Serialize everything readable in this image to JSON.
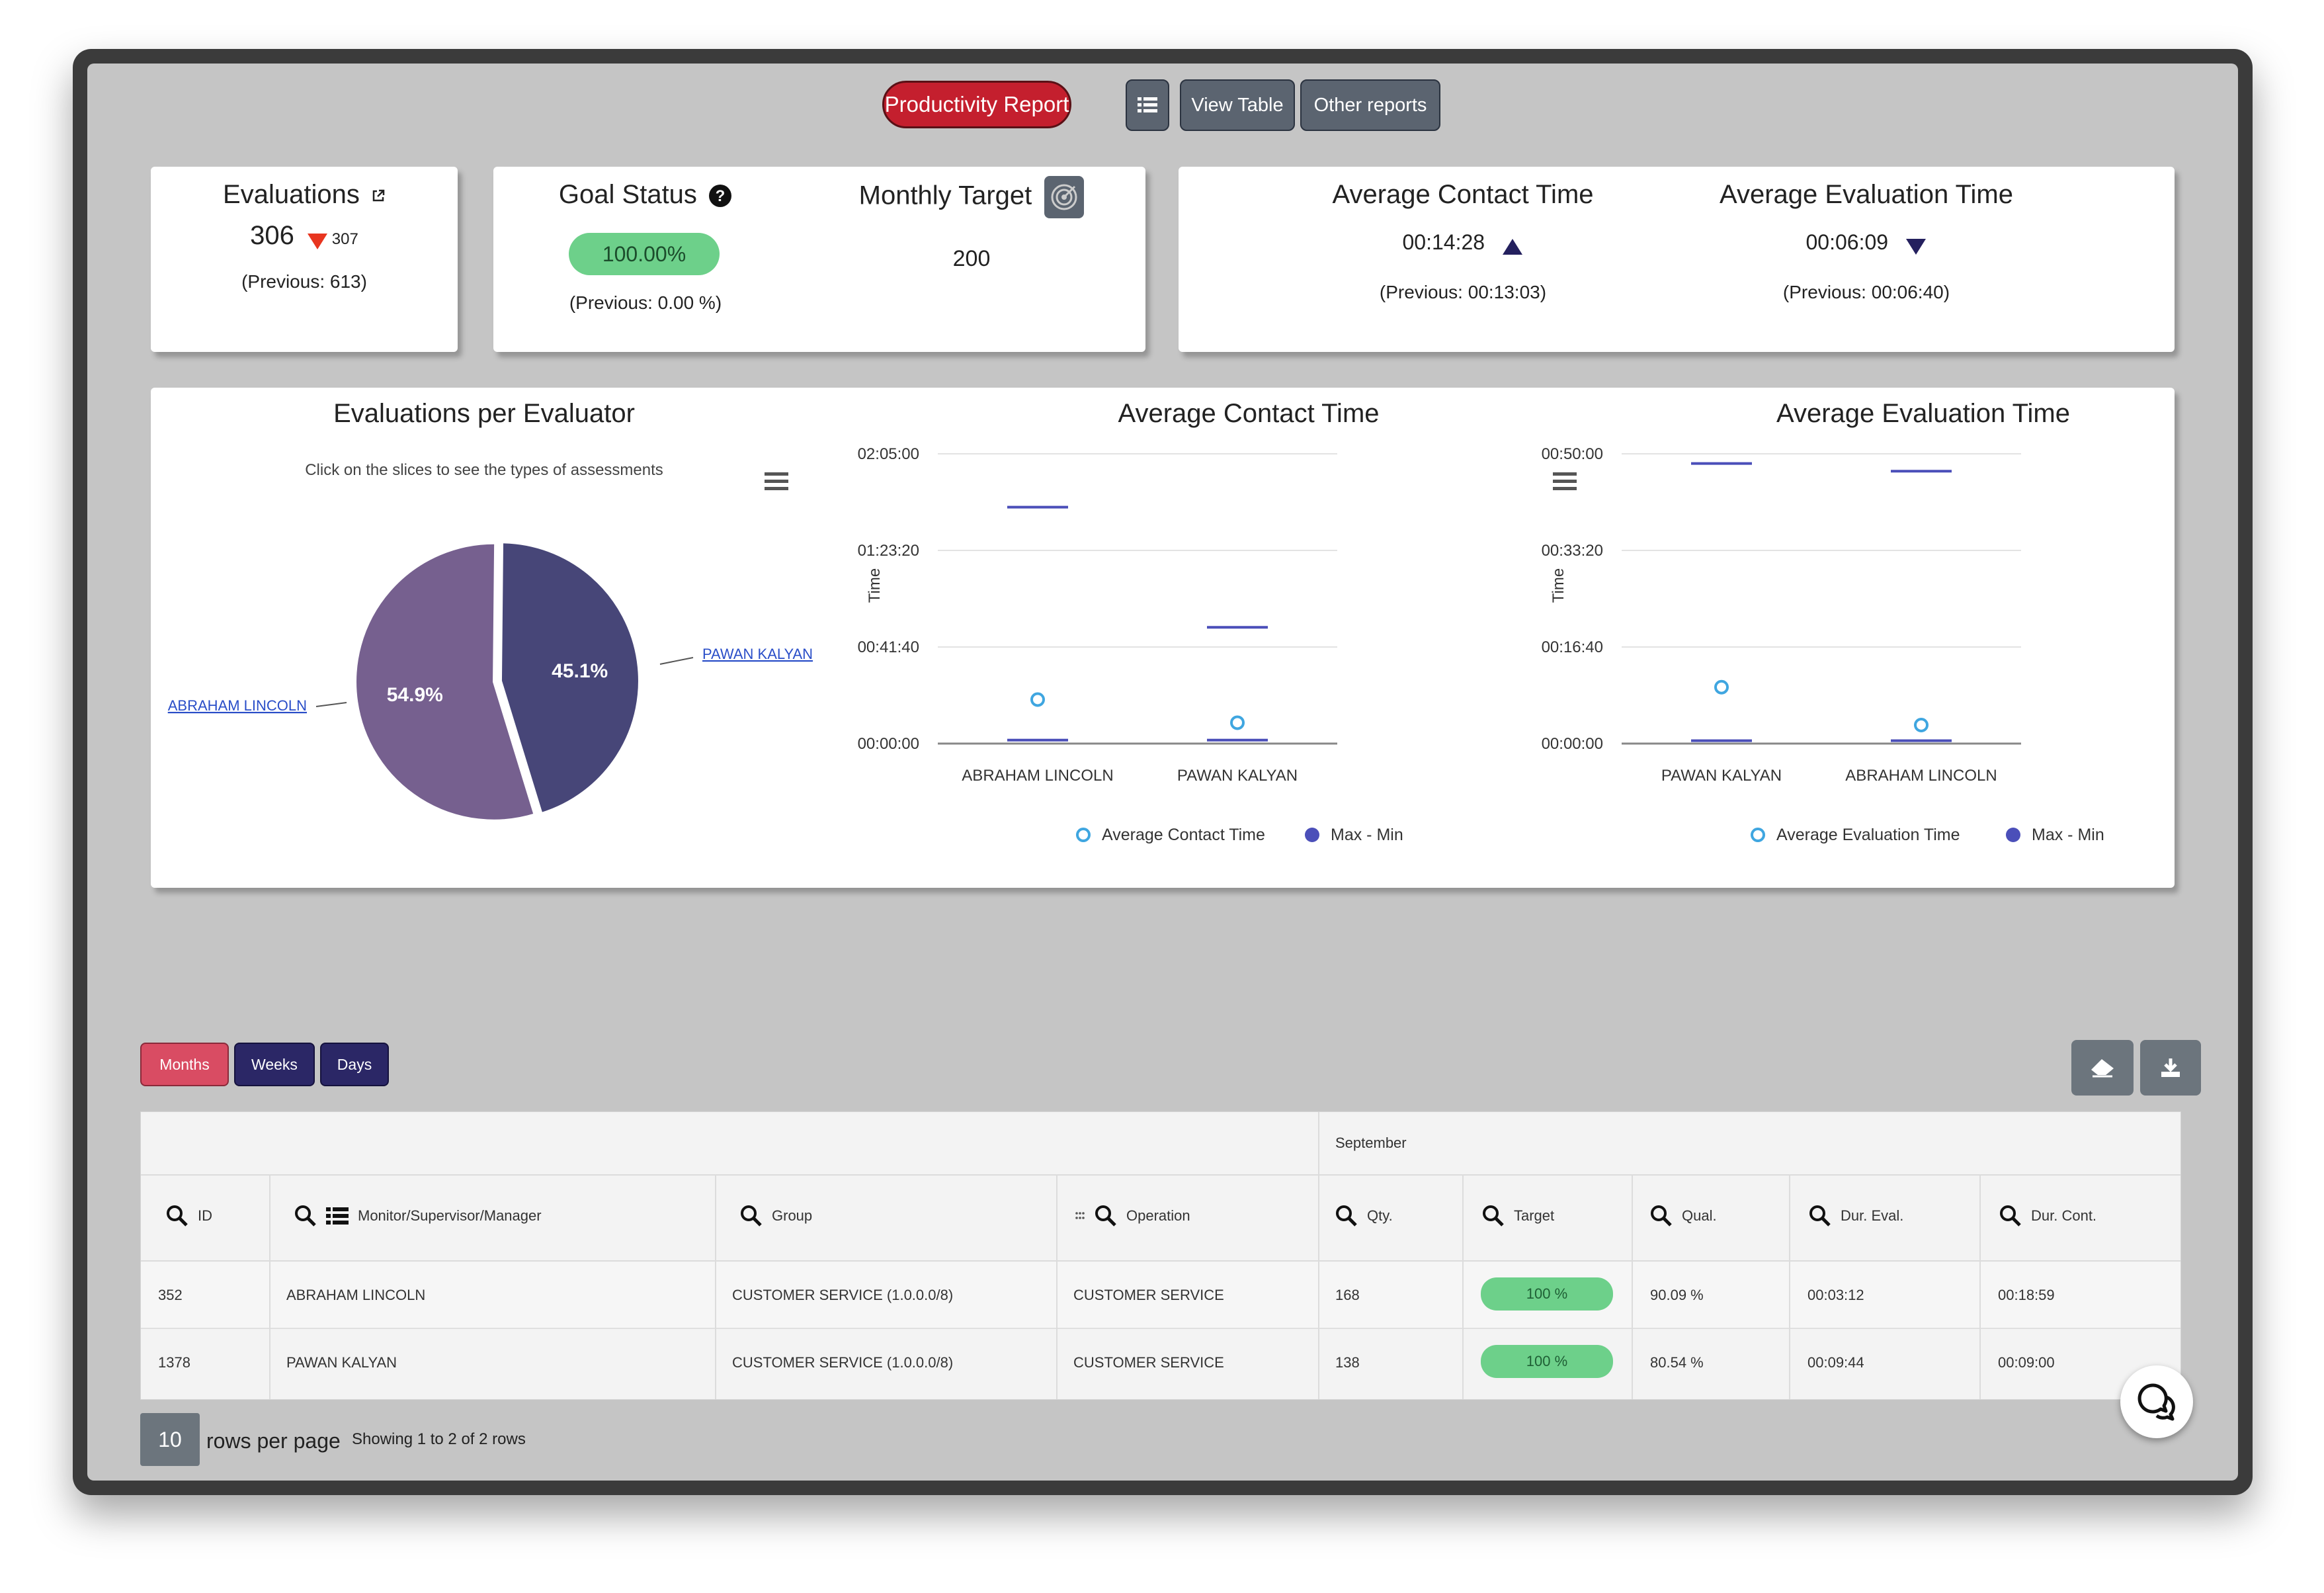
{
  "toolbar": {
    "productivity_report": "Productivity Report",
    "list_icon": "list-icon",
    "view_table": "View Table",
    "other_reports": "Other reports"
  },
  "kpi": {
    "evaluations": {
      "title": "Evaluations",
      "value": "306",
      "delta": "307",
      "previous": "(Previous: 613)"
    },
    "goal_status": {
      "title": "Goal Status",
      "value": "100.00%",
      "previous": "(Previous: 0.00 %)"
    },
    "monthly_target": {
      "title": "Monthly Target",
      "value": "200"
    },
    "avg_contact": {
      "title": "Average Contact Time",
      "value": "00:14:28",
      "previous": "(Previous: 00:13:03)"
    },
    "avg_eval": {
      "title": "Average Evaluation Time",
      "value": "00:06:09",
      "previous": "(Previous: 00:06:40)"
    }
  },
  "colors": {
    "primary_red": "#c41f2e",
    "navy": "#2b2766",
    "months_red": "#d94c63",
    "green": "#6dd08a",
    "pie_a": "#76608f",
    "pie_b": "#474678",
    "point": "#3fa6e0",
    "range": "#4b4fb9"
  },
  "chart_data": [
    {
      "type": "pie",
      "title": "Evaluations per Evaluator",
      "subtitle": "Click on the slices to see the types of assessments",
      "slices": [
        {
          "label": "PAWAN KALYAN",
          "value": 45.1,
          "display": "45.1%",
          "color": "#474678"
        },
        {
          "label": "ABRAHAM LINCOLN",
          "value": 54.9,
          "display": "54.9%",
          "color": "#76608f"
        }
      ]
    },
    {
      "type": "scatter",
      "title": "Average Contact Time",
      "ylabel": "Time",
      "yticks": [
        "00:00:00",
        "00:41:40",
        "01:23:20",
        "02:05:00"
      ],
      "ylim": [
        0,
        7500
      ],
      "categories": [
        "ABRAHAM LINCOLN",
        "PAWAN KALYAN"
      ],
      "series": [
        {
          "name": "Average Contact Time",
          "values": [
            1139,
            540
          ]
        },
        {
          "name": "Max - Min",
          "values": [
            [
              90,
              6120
            ],
            [
              90,
              3010
            ]
          ]
        }
      ]
    },
    {
      "type": "scatter",
      "title": "Average Evaluation Time",
      "ylabel": "Time",
      "yticks": [
        "00:00:00",
        "00:16:40",
        "00:33:20",
        "00:50:00"
      ],
      "ylim": [
        0,
        3000
      ],
      "categories": [
        "PAWAN KALYAN",
        "ABRAHAM LINCOLN"
      ],
      "series": [
        {
          "name": "Average Evaluation Time",
          "values": [
            584,
            192
          ]
        },
        {
          "name": "Max - Min",
          "values": [
            [
              30,
              2900
            ],
            [
              30,
              2820
            ]
          ]
        }
      ]
    }
  ],
  "table": {
    "period_tabs": [
      "Months",
      "Weeks",
      "Days"
    ],
    "group_header": "September",
    "columns": [
      "ID",
      "Monitor/Supervisor/Manager",
      "Group",
      "Operation",
      "Qty.",
      "Target",
      "Qual.",
      "Dur. Eval.",
      "Dur. Cont."
    ],
    "rows": [
      [
        "352",
        "ABRAHAM LINCOLN",
        "CUSTOMER SERVICE (1.0.0.0/8)",
        "CUSTOMER SERVICE",
        "168",
        "100 %",
        "90.09 %",
        "00:03:12",
        "00:18:59"
      ],
      [
        "1378",
        "PAWAN KALYAN",
        "CUSTOMER SERVICE (1.0.0.0/8)",
        "CUSTOMER SERVICE",
        "138",
        "100 %",
        "80.54 %",
        "00:09:44",
        "00:09:00"
      ]
    ],
    "page_size": "10",
    "rows_per_page": "rows per page",
    "showing": "Showing 1 to 2 of 2 rows"
  }
}
